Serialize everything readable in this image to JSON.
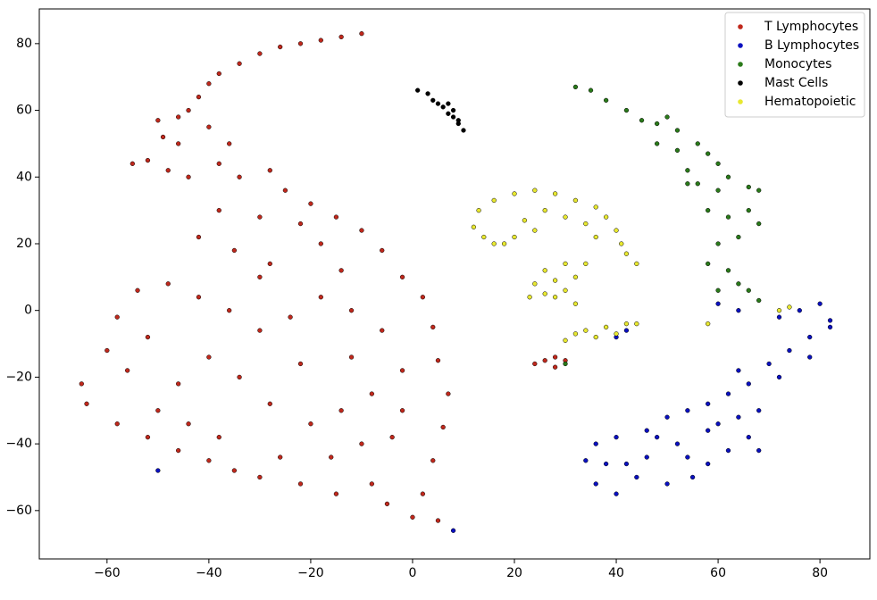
{
  "chart_data": {
    "type": "scatter",
    "xlim": [
      -73.3,
      89.8
    ],
    "ylim": [
      -74.5,
      90.4
    ],
    "xticks": [
      {
        "value": -60,
        "label": "−60"
      },
      {
        "value": -40,
        "label": "−40"
      },
      {
        "value": -20,
        "label": "−20"
      },
      0,
      20,
      40,
      60,
      80
    ],
    "yticks": [
      {
        "value": -60,
        "label": "−60"
      },
      {
        "value": -40,
        "label": "−40"
      },
      {
        "value": -20,
        "label": "−20"
      },
      0,
      20,
      40,
      60,
      80
    ],
    "legend": "upper right",
    "grid": false,
    "series": [
      {
        "name": "T Lymphocytes",
        "color": "#c0281c",
        "x": [
          -10,
          -14,
          -18,
          -22,
          -26,
          -30,
          -34,
          -38,
          -40,
          -42,
          -44,
          -46,
          -50,
          -49,
          -46,
          -52,
          -55,
          -48,
          -44,
          -38,
          -36,
          -40,
          -34,
          -28,
          -25,
          -20,
          -22,
          -30,
          -38,
          -42,
          -35,
          -28,
          -18,
          -15,
          -10,
          -6,
          -2,
          2,
          4,
          5,
          7,
          6,
          4,
          2,
          0,
          5,
          -5,
          -15,
          -22,
          -30,
          -35,
          -40,
          -46,
          -52,
          -58,
          -64,
          -65,
          -60,
          -58,
          -54,
          -48,
          -42,
          -36,
          -30,
          -24,
          -18,
          -12,
          -6,
          -2,
          -8,
          -14,
          -20,
          -28,
          -34,
          -40,
          -46,
          -50,
          -44,
          -38,
          -26,
          -16,
          -10,
          -4,
          -12,
          -22,
          -52,
          -56,
          -30,
          -14,
          -8,
          -2,
          26,
          28,
          30,
          24,
          28
        ],
        "y": [
          83,
          82,
          81,
          80,
          79,
          77,
          74,
          71,
          68,
          64,
          60,
          58,
          57,
          52,
          50,
          45,
          44,
          42,
          40,
          44,
          50,
          55,
          40,
          42,
          36,
          32,
          26,
          28,
          30,
          22,
          18,
          14,
          20,
          28,
          24,
          18,
          10,
          4,
          -5,
          -15,
          -25,
          -35,
          -45,
          -55,
          -62,
          -63,
          -58,
          -55,
          -52,
          -50,
          -48,
          -45,
          -42,
          -38,
          -34,
          -28,
          -22,
          -12,
          -2,
          6,
          8,
          4,
          0,
          -6,
          -2,
          4,
          0,
          -6,
          -18,
          -25,
          -30,
          -34,
          -28,
          -20,
          -14,
          -22,
          -30,
          -34,
          -38,
          -44,
          -44,
          -40,
          -38,
          -14,
          -16,
          -8,
          -18,
          10,
          12,
          -52,
          -30,
          -15,
          -17,
          -15,
          -16,
          -14
        ]
      },
      {
        "name": "B Lymphocytes",
        "color": "#0a10c0",
        "x": [
          80,
          82,
          76,
          72,
          78,
          74,
          70,
          72,
          66,
          62,
          58,
          54,
          50,
          46,
          40,
          36,
          34,
          36,
          40,
          44,
          50,
          55,
          58,
          62,
          66,
          68,
          64,
          58,
          52,
          46,
          42,
          48,
          54,
          60,
          38,
          68,
          64,
          78,
          82,
          64,
          60,
          40,
          42,
          8,
          -50
        ],
        "y": [
          2,
          -3,
          0,
          -2,
          -8,
          -12,
          -16,
          -20,
          -22,
          -25,
          -28,
          -30,
          -32,
          -36,
          -38,
          -40,
          -45,
          -52,
          -55,
          -50,
          -52,
          -50,
          -46,
          -42,
          -38,
          -30,
          -32,
          -36,
          -40,
          -44,
          -46,
          -38,
          -44,
          -34,
          -46,
          -42,
          -18,
          -14,
          -5,
          0,
          2,
          -8,
          -6,
          -66,
          -48
        ]
      },
      {
        "name": "Monocytes",
        "color": "#2a7a1a",
        "x": [
          32,
          35,
          38,
          42,
          45,
          48,
          52,
          56,
          58,
          60,
          62,
          66,
          68,
          60,
          56,
          58,
          62,
          66,
          68,
          64,
          60,
          58,
          62,
          64,
          66,
          60,
          68,
          54,
          48,
          52,
          54,
          50,
          30
        ],
        "y": [
          67,
          66,
          63,
          60,
          57,
          56,
          54,
          50,
          47,
          44,
          40,
          37,
          36,
          36,
          38,
          30,
          28,
          30,
          26,
          22,
          20,
          14,
          12,
          8,
          6,
          6,
          3,
          38,
          50,
          48,
          42,
          58,
          -16
        ]
      },
      {
        "name": "Mast Cells",
        "color": "#000000",
        "x": [
          1,
          3,
          4,
          6,
          7,
          8,
          9,
          10,
          5,
          7,
          8,
          9
        ],
        "y": [
          66,
          65,
          63,
          61,
          59,
          58,
          56,
          54,
          62,
          62,
          60,
          57
        ]
      },
      {
        "name": "Hematopoietic",
        "color": "#e8e830",
        "x": [
          12,
          13,
          16,
          20,
          24,
          28,
          32,
          36,
          38,
          40,
          41,
          42,
          44,
          14,
          16,
          18,
          22,
          26,
          30,
          34,
          24,
          20,
          36,
          24,
          26,
          28,
          30,
          32,
          34,
          30,
          26,
          28,
          32,
          23,
          30,
          34,
          38,
          42,
          44,
          36,
          32,
          40,
          72,
          74,
          58
        ],
        "y": [
          25,
          30,
          33,
          35,
          36,
          35,
          33,
          31,
          28,
          24,
          20,
          17,
          14,
          22,
          20,
          20,
          27,
          30,
          28,
          26,
          24,
          22,
          22,
          8,
          5,
          4,
          6,
          10,
          14,
          14,
          12,
          9,
          2,
          4,
          -9,
          -6,
          -5,
          -4,
          -4,
          -8,
          -7,
          -7,
          0,
          1,
          -4
        ]
      }
    ]
  }
}
